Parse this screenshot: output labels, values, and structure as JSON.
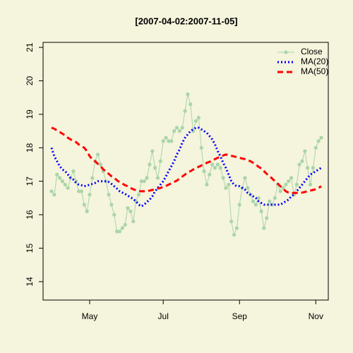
{
  "chart_data": {
    "type": "line",
    "title": "[2007-04-02:2007-11-05]",
    "categories": [
      null,
      null,
      null,
      null,
      null,
      null,
      null,
      null,
      null,
      null,
      null,
      null,
      null,
      null,
      "May",
      null,
      null,
      null,
      null,
      null,
      null,
      null,
      null,
      null,
      null,
      null,
      null,
      null,
      null,
      null,
      null,
      null,
      null,
      null,
      null,
      null,
      null,
      null,
      null,
      null,
      null,
      "Jul",
      null,
      null,
      null,
      null,
      null,
      null,
      null,
      null,
      null,
      null,
      null,
      null,
      null,
      null,
      null,
      null,
      null,
      null,
      null,
      null,
      null,
      null,
      null,
      null,
      null,
      null,
      null,
      "Sep",
      null,
      null,
      null,
      null,
      null,
      null,
      null,
      null,
      null,
      null,
      null,
      null,
      null,
      null,
      null,
      null,
      null,
      null,
      null,
      null,
      null,
      null,
      null,
      null,
      null,
      null,
      null,
      "Nov",
      null,
      null
    ],
    "series": [
      {
        "name": "Close",
        "color": "#a9d5a9",
        "linestyle": "solid",
        "markers": true,
        "values": [
          16.7,
          16.6,
          17.2,
          17.1,
          17.0,
          16.9,
          16.8,
          17.1,
          17.3,
          17.0,
          16.7,
          16.7,
          16.3,
          16.1,
          16.6,
          17.1,
          17.6,
          17.8,
          17.5,
          17.3,
          17.0,
          16.6,
          16.3,
          16.0,
          15.5,
          15.5,
          15.6,
          15.7,
          16.2,
          16.1,
          15.8,
          16.4,
          16.6,
          17.0,
          17.0,
          17.1,
          17.5,
          17.9,
          17.4,
          17.1,
          17.6,
          18.2,
          18.3,
          18.2,
          18.2,
          18.5,
          18.6,
          18.5,
          18.6,
          19.1,
          19.6,
          19.3,
          18.5,
          18.8,
          18.9,
          18.0,
          17.3,
          16.9,
          17.2,
          17.5,
          17.4,
          17.5,
          17.4,
          17.1,
          16.8,
          16.9,
          15.8,
          15.4,
          15.6,
          16.3,
          16.8,
          17.1,
          16.8,
          16.6,
          16.4,
          16.3,
          16.5,
          16.1,
          15.6,
          15.9,
          16.4,
          16.3,
          16.5,
          16.9,
          16.7,
          16.8,
          16.9,
          17.0,
          17.1,
          16.6,
          16.9,
          17.5,
          17.6,
          17.9,
          17.4,
          16.9,
          17.4,
          18.0,
          18.2,
          18.3
        ]
      },
      {
        "name": "MA(20)",
        "color": "#0000ff",
        "linestyle": "dotted",
        "markers": false,
        "values": [
          18.0,
          17.75,
          17.6,
          17.45,
          17.35,
          17.3,
          17.2,
          17.1,
          17.05,
          16.95,
          16.9,
          16.88,
          16.85,
          16.87,
          16.9,
          16.92,
          16.95,
          17.0,
          17.0,
          17.0,
          17.0,
          16.98,
          16.92,
          16.85,
          16.78,
          16.7,
          16.66,
          16.62,
          16.57,
          16.52,
          16.47,
          16.4,
          16.3,
          16.25,
          16.3,
          16.38,
          16.45,
          16.55,
          16.7,
          16.8,
          16.9,
          17.0,
          17.15,
          17.3,
          17.45,
          17.6,
          17.8,
          17.95,
          18.15,
          18.3,
          18.4,
          18.5,
          18.55,
          18.6,
          18.6,
          18.55,
          18.5,
          18.45,
          18.35,
          18.25,
          18.1,
          17.9,
          17.75,
          17.55,
          17.4,
          17.2,
          17.0,
          16.9,
          16.85,
          16.85,
          16.8,
          16.75,
          16.65,
          16.6,
          16.55,
          16.5,
          16.4,
          16.35,
          16.3,
          16.3,
          16.3,
          16.3,
          16.3,
          16.3,
          16.3,
          16.35,
          16.4,
          16.45,
          16.55,
          16.6,
          16.7,
          16.8,
          16.9,
          17.0,
          17.1,
          17.2,
          17.25,
          17.3,
          17.35,
          17.4
        ]
      },
      {
        "name": "MA(50)",
        "color": "#ff0000",
        "linestyle": "dashed",
        "markers": false,
        "values": [
          18.6,
          18.57,
          18.52,
          18.47,
          18.42,
          18.37,
          18.3,
          18.25,
          18.2,
          18.17,
          18.1,
          18.05,
          18.0,
          17.9,
          17.75,
          17.65,
          17.6,
          17.52,
          17.45,
          17.35,
          17.3,
          17.22,
          17.15,
          17.1,
          17.03,
          16.97,
          16.93,
          16.88,
          16.85,
          16.8,
          16.76,
          16.73,
          16.7,
          16.7,
          16.7,
          16.7,
          16.72,
          16.74,
          16.76,
          16.78,
          16.8,
          16.83,
          16.86,
          16.9,
          16.94,
          16.98,
          17.02,
          17.08,
          17.14,
          17.2,
          17.27,
          17.3,
          17.35,
          17.4,
          17.43,
          17.47,
          17.5,
          17.55,
          17.58,
          17.62,
          17.66,
          17.7,
          17.73,
          17.77,
          17.8,
          17.78,
          17.76,
          17.74,
          17.72,
          17.7,
          17.68,
          17.66,
          17.63,
          17.6,
          17.55,
          17.5,
          17.43,
          17.38,
          17.3,
          17.22,
          17.15,
          17.08,
          17.0,
          16.93,
          16.85,
          16.78,
          16.7,
          16.66,
          16.65,
          16.65,
          16.65,
          16.65,
          16.66,
          16.68,
          16.7,
          16.72,
          16.74,
          16.76,
          16.8,
          16.85
        ]
      }
    ],
    "ylim": [
      13.45,
      21.15
    ],
    "yticks": [
      14,
      15,
      16,
      17,
      18,
      19,
      20,
      21
    ],
    "grid": false,
    "legend": "topright"
  }
}
